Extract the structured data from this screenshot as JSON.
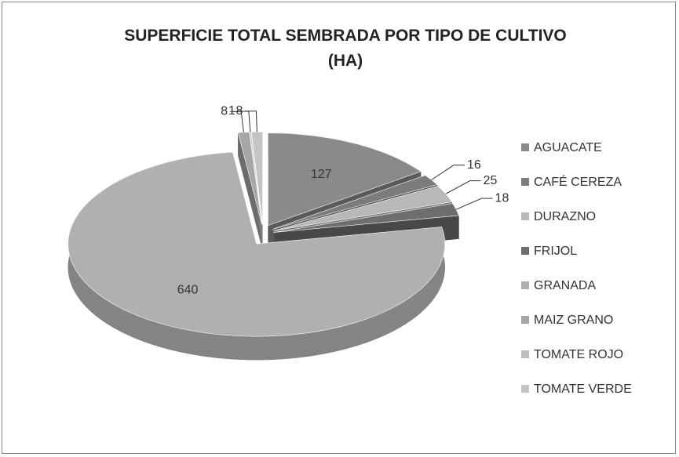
{
  "chart_data": {
    "type": "pie",
    "title": "SUPERFICIE TOTAL SEMBRADA POR TIPO DE CULTIVO (HA)",
    "categories": [
      "AGUACATE",
      "CAFÉ CEREZA",
      "DURAZNO",
      "FRIJOL",
      "GRANADA",
      "MAIZ GRANO",
      "TOMATE ROJO",
      "TOMATE VERDE"
    ],
    "values": [
      127,
      16,
      25,
      18,
      640,
      8,
      1,
      8
    ],
    "colors": [
      "#8a8a8a",
      "#7c7c7c",
      "#b8b8b8",
      "#6e6e6e",
      "#b0b0b0",
      "#a6a6a6",
      "#bdbdbd",
      "#c4c4c4"
    ],
    "legend": "right"
  }
}
